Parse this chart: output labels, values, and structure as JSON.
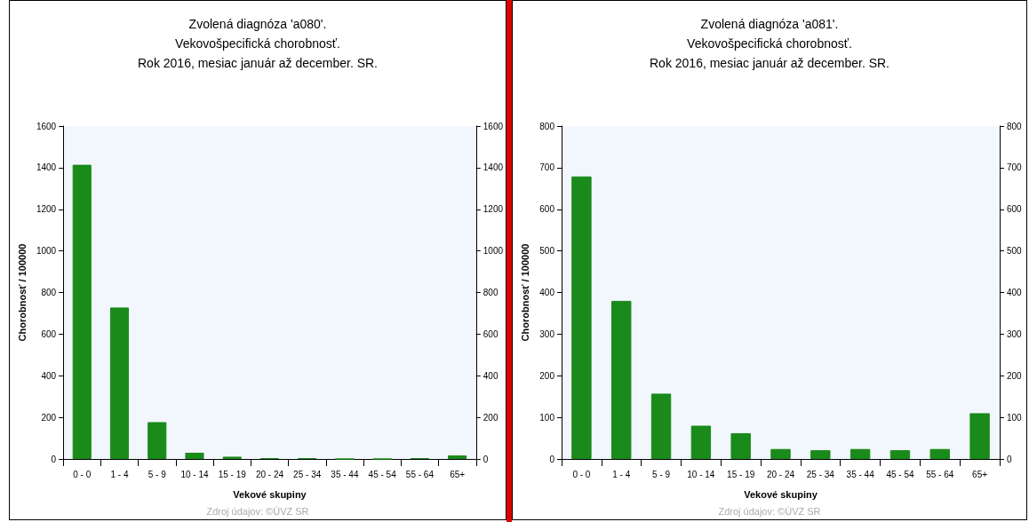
{
  "chart_data": [
    {
      "type": "bar",
      "title": "Zvolená diagnóza 'a080'.\nVekovošpecifická chorobnosť.\nRok 2016, mesiac január až december. SR.",
      "xlabel": "Vekové skupiny",
      "ylabel": "Chorobnosť / 100000",
      "categories": [
        "0 - 0",
        "1 - 4",
        "5 - 9",
        "10 - 14",
        "15 - 19",
        "20 - 24",
        "25 - 34",
        "35 - 44",
        "45 - 54",
        "55 - 64",
        "65+"
      ],
      "values": [
        1414,
        728,
        177,
        30,
        11,
        4,
        4,
        0,
        0,
        4,
        17
      ],
      "color": "#1a8a1a",
      "ylim": [
        0,
        1600
      ],
      "yticks": [
        0,
        200,
        400,
        600,
        800,
        1000,
        1200,
        1400,
        1600
      ],
      "y2lim": [
        0,
        1600
      ],
      "y2ticks": [
        0,
        200,
        400,
        600,
        800,
        1000,
        1200,
        1400,
        1600
      ],
      "grid": false,
      "annotations": [
        "Zdroj údajov: ©ÚVZ SR"
      ]
    },
    {
      "type": "bar",
      "title": "Zvolená diagnóza 'a081'.\nVekovošpecifická chorobnosť.\nRok 2016, mesiac január až december. SR.",
      "xlabel": "Vekové skupiny",
      "ylabel": "Chorobnosť / 100000",
      "categories": [
        "0 - 0",
        "1 - 4",
        "5 - 9",
        "10 - 14",
        "15 - 19",
        "20 - 24",
        "25 - 34",
        "35 - 44",
        "45 - 54",
        "55 - 64",
        "65+"
      ],
      "values": [
        679,
        380,
        157,
        80,
        62,
        24,
        21,
        24,
        21,
        24,
        110
      ],
      "color": "#1a8a1a",
      "ylim": [
        0,
        800
      ],
      "yticks": [
        0,
        100,
        200,
        300,
        400,
        500,
        600,
        700,
        800
      ],
      "y2lim": [
        0,
        800
      ],
      "y2ticks": [
        0,
        100,
        200,
        300,
        400,
        500,
        600,
        700,
        800
      ],
      "grid": false,
      "annotations": [
        "Zdroj údajov: ©ÚVZ SR"
      ]
    }
  ]
}
